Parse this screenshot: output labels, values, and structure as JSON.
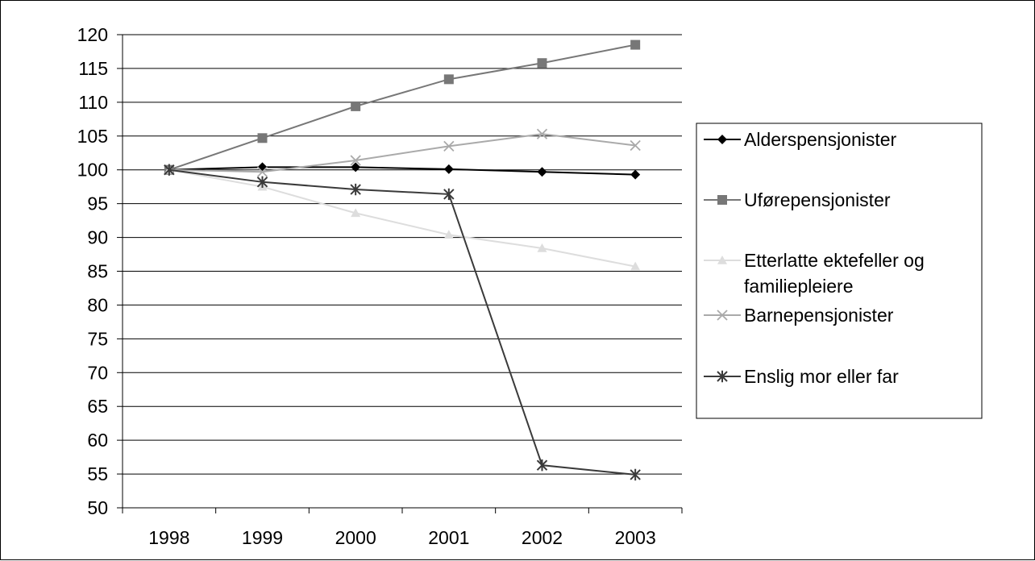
{
  "chart_data": {
    "type": "line",
    "title": "",
    "xlabel": "",
    "ylabel": "",
    "categories": [
      "1998",
      "1999",
      "2000",
      "2001",
      "2002",
      "2003"
    ],
    "ylim": [
      50,
      120
    ],
    "yticks": [
      120,
      115,
      110,
      105,
      100,
      95,
      90,
      85,
      80,
      75,
      70,
      65,
      60,
      55,
      50
    ],
    "grid": "horizontal",
    "legend_position": "right",
    "series": [
      {
        "name": "Alderspensjonister",
        "values": [
          100,
          100.4,
          100.4,
          100.1,
          99.7,
          99.3
        ],
        "color": "#000000",
        "marker": "diamond"
      },
      {
        "name": "Uførepensjonister",
        "values": [
          100,
          104.7,
          109.4,
          113.4,
          115.8,
          118.5
        ],
        "color": "#777777",
        "marker": "square"
      },
      {
        "name": "Etterlatte ektefeller og familiepleiere",
        "values": [
          100,
          97.5,
          93.6,
          90.4,
          88.4,
          85.7
        ],
        "color": "#dddddd",
        "marker": "triangle"
      },
      {
        "name": "Barnepensjonister",
        "values": [
          100,
          99.7,
          101.4,
          103.5,
          105.3,
          103.6
        ],
        "color": "#aaaaaa",
        "marker": "x"
      },
      {
        "name": "Enslig mor eller far",
        "values": [
          100,
          98.2,
          97.1,
          96.4,
          56.3,
          54.9
        ],
        "color": "#3a3a3a",
        "marker": "star"
      }
    ]
  }
}
